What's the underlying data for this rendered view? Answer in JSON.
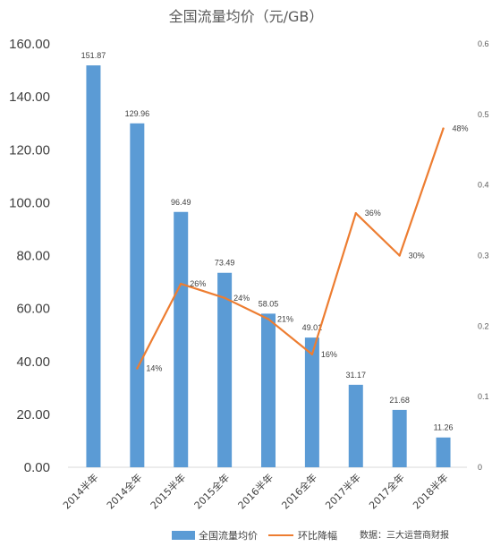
{
  "chart_data": {
    "type": "bar",
    "title": "全国流量均价（元/GB）",
    "categories": [
      "2014半年",
      "2014全年",
      "2015半年",
      "2015全年",
      "2016半年",
      "2016全年",
      "2017半年",
      "2017全年",
      "2018半年"
    ],
    "ylim": [
      0,
      160
    ],
    "yticks": [
      "0.00",
      "20.00",
      "40.00",
      "60.00",
      "80.00",
      "100.00",
      "120.00",
      "140.00",
      "160.00"
    ],
    "y2lim": [
      0,
      0.6
    ],
    "y2ticks": [
      "0",
      "0.1",
      "0.2",
      "0.3",
      "0.4",
      "0.5",
      "0.6"
    ],
    "series": [
      {
        "name": "全国流量均价",
        "type": "bar",
        "axis": "left",
        "color": "#5b9bd5",
        "values": [
          151.87,
          129.96,
          96.49,
          73.49,
          58.05,
          49.01,
          31.17,
          21.68,
          11.26
        ],
        "labels": [
          "151.87",
          "129.96",
          "96.49",
          "73.49",
          "58.05",
          "49.01",
          "31.17",
          "21.68",
          "11.26"
        ]
      },
      {
        "name": "环比降幅",
        "type": "line",
        "axis": "right",
        "color": "#ed7d31",
        "values": [
          null,
          0.14,
          0.26,
          0.24,
          0.21,
          0.16,
          0.36,
          0.3,
          0.48
        ],
        "labels": [
          "",
          "14%",
          "26%",
          "24%",
          "21%",
          "16%",
          "36%",
          "30%",
          "48%"
        ]
      }
    ],
    "grid": false,
    "legend": "bottom"
  },
  "source_note": "数据：三大运营商财报"
}
